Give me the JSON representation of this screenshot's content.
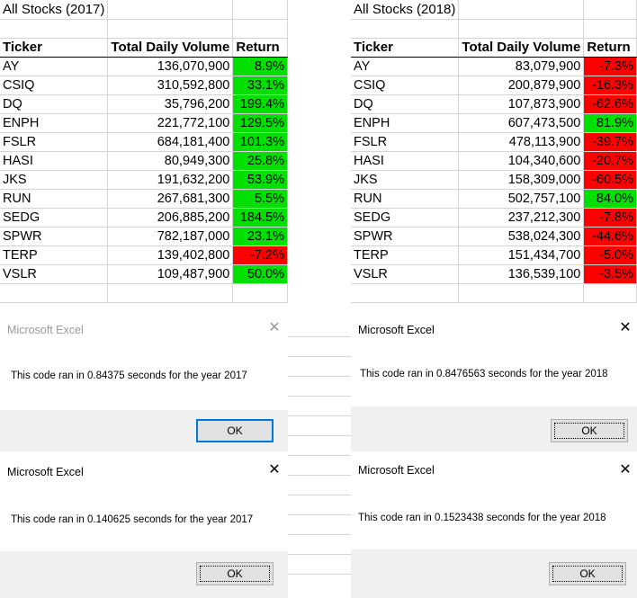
{
  "sheet_2017": {
    "title": "All Stocks (2017)",
    "headers": [
      "Ticker",
      "Total Daily Volume",
      "Return"
    ],
    "rows": [
      {
        "ticker": "AY",
        "volume": "136,070,900",
        "ret": "8.9%",
        "sign": "pos"
      },
      {
        "ticker": "CSIQ",
        "volume": "310,592,800",
        "ret": "33.1%",
        "sign": "pos"
      },
      {
        "ticker": "DQ",
        "volume": "35,796,200",
        "ret": "199.4%",
        "sign": "pos"
      },
      {
        "ticker": "ENPH",
        "volume": "221,772,100",
        "ret": "129.5%",
        "sign": "pos"
      },
      {
        "ticker": "FSLR",
        "volume": "684,181,400",
        "ret": "101.3%",
        "sign": "pos"
      },
      {
        "ticker": "HASI",
        "volume": "80,949,300",
        "ret": "25.8%",
        "sign": "pos"
      },
      {
        "ticker": "JKS",
        "volume": "191,632,200",
        "ret": "53.9%",
        "sign": "pos"
      },
      {
        "ticker": "RUN",
        "volume": "267,681,300",
        "ret": "5.5%",
        "sign": "pos"
      },
      {
        "ticker": "SEDG",
        "volume": "206,885,200",
        "ret": "184.5%",
        "sign": "pos"
      },
      {
        "ticker": "SPWR",
        "volume": "782,187,000",
        "ret": "23.1%",
        "sign": "pos"
      },
      {
        "ticker": "TERP",
        "volume": "139,402,800",
        "ret": "-7.2%",
        "sign": "neg"
      },
      {
        "ticker": "VSLR",
        "volume": "109,487,900",
        "ret": "50.0%",
        "sign": "pos"
      }
    ]
  },
  "sheet_2018": {
    "title": "All Stocks (2018)",
    "headers": [
      "Ticker",
      "Total Daily Volume",
      "Return"
    ],
    "rows": [
      {
        "ticker": "AY",
        "volume": "83,079,900",
        "ret": "-7.3%",
        "sign": "neg"
      },
      {
        "ticker": "CSIQ",
        "volume": "200,879,900",
        "ret": "-16.3%",
        "sign": "neg"
      },
      {
        "ticker": "DQ",
        "volume": "107,873,900",
        "ret": "-62.6%",
        "sign": "neg"
      },
      {
        "ticker": "ENPH",
        "volume": "607,473,500",
        "ret": "81.9%",
        "sign": "pos"
      },
      {
        "ticker": "FSLR",
        "volume": "478,113,900",
        "ret": "-39.7%",
        "sign": "neg"
      },
      {
        "ticker": "HASI",
        "volume": "104,340,600",
        "ret": "-20.7%",
        "sign": "neg"
      },
      {
        "ticker": "JKS",
        "volume": "158,309,000",
        "ret": "-60.5%",
        "sign": "neg"
      },
      {
        "ticker": "RUN",
        "volume": "502,757,100",
        "ret": "84.0%",
        "sign": "pos"
      },
      {
        "ticker": "SEDG",
        "volume": "237,212,300",
        "ret": "-7.8%",
        "sign": "neg"
      },
      {
        "ticker": "SPWR",
        "volume": "538,024,300",
        "ret": "-44.6%",
        "sign": "neg"
      },
      {
        "ticker": "TERP",
        "volume": "151,434,700",
        "ret": "-5.0%",
        "sign": "neg"
      },
      {
        "ticker": "VSLR",
        "volume": "136,539,100",
        "ret": "-3.5%",
        "sign": "neg"
      }
    ]
  },
  "colors": {
    "positive": "#00e000",
    "negative": "#ff0000",
    "grid": "#d4d4d4"
  },
  "dialogs": [
    {
      "title": "Microsoft Excel",
      "message": "This code ran in 0.84375 seconds for the year 2017",
      "ok": "OK",
      "close_icon": "close-icon"
    },
    {
      "title": "Microsoft Excel",
      "message": "This code ran in 0.8476563 seconds for the year 2018",
      "ok": "OK",
      "close_icon": "close-icon"
    },
    {
      "title": "Microsoft Excel",
      "message": "This code ran in 0.140625 seconds for the year 2017",
      "ok": "OK",
      "close_icon": "close-icon"
    },
    {
      "title": "Microsoft Excel",
      "message": "This code ran in 0.1523438 seconds for the year 2018",
      "ok": "OK",
      "close_icon": "close-icon"
    }
  ]
}
